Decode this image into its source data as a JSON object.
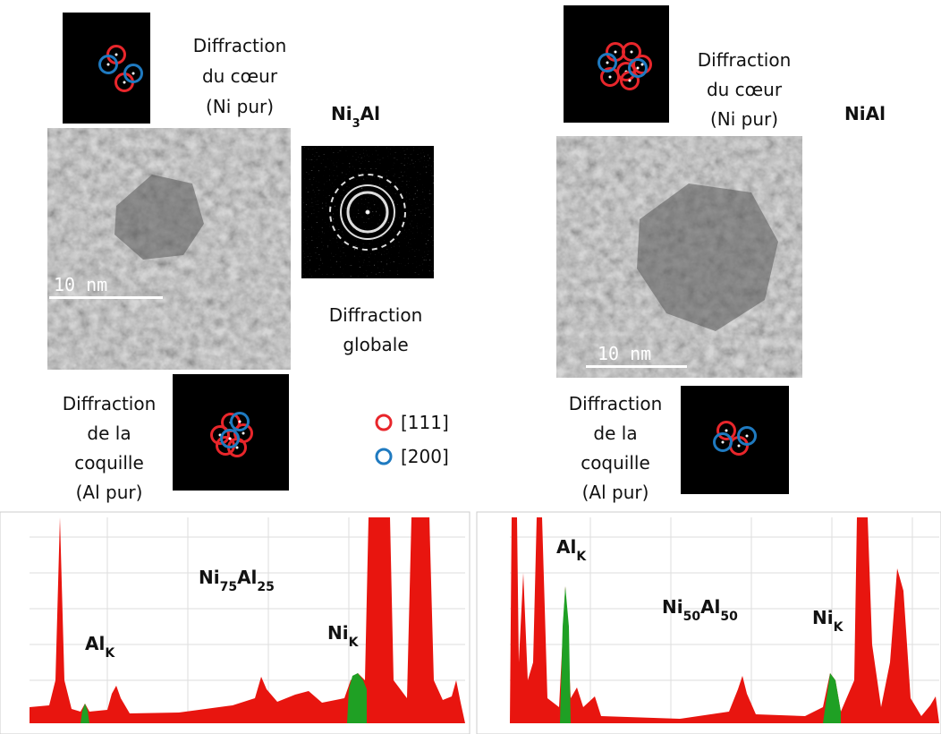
{
  "panels": [
    {
      "core_diffraction": [
        "Diffraction",
        "du cœur",
        "(Ni pur)"
      ],
      "phase": [
        {
          "text": "Ni"
        },
        {
          "text": "3",
          "sub": true
        },
        {
          "text": "Al"
        }
      ],
      "scale_bar": "10 nm",
      "global_diffraction": [
        "Diffraction",
        "globale"
      ],
      "shell_diffraction": [
        "Diffraction",
        "de la",
        "coquille",
        "(Al pur)"
      ],
      "spectrum": {
        "composition": [
          {
            "text": "Ni"
          },
          {
            "text": "75",
            "sub": true
          },
          {
            "text": "Al"
          },
          {
            "text": "25",
            "sub": true
          }
        ],
        "al_label": [
          {
            "text": "Al"
          },
          {
            "text": "K",
            "sub": true
          }
        ],
        "ni_label": [
          {
            "text": "Ni"
          },
          {
            "text": "K",
            "sub": true
          }
        ]
      }
    },
    {
      "core_diffraction": [
        "Diffraction",
        "du cœur",
        "(Ni pur)"
      ],
      "phase": [
        {
          "text": "NiAl"
        }
      ],
      "scale_bar": "10 nm",
      "shell_diffraction": [
        "Diffraction",
        "de la",
        "coquille",
        "(Al pur)"
      ],
      "spectrum": {
        "composition": [
          {
            "text": "Ni"
          },
          {
            "text": "50",
            "sub": true
          },
          {
            "text": "Al"
          },
          {
            "text": "50",
            "sub": true
          }
        ],
        "al_label": [
          {
            "text": "Al"
          },
          {
            "text": "K",
            "sub": true
          }
        ],
        "ni_label": [
          {
            "text": "Ni"
          },
          {
            "text": "K",
            "sub": true
          }
        ]
      }
    }
  ],
  "legend": [
    {
      "label": "[111]",
      "color": "#e8262b"
    },
    {
      "label": "[200]",
      "color": "#1f7ac0"
    }
  ]
}
